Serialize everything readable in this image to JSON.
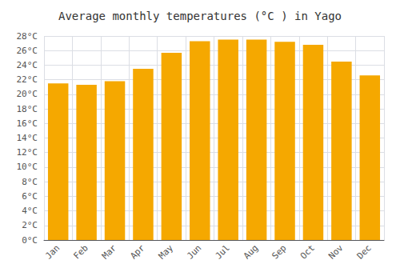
{
  "chart_data": {
    "type": "bar",
    "title": "Average monthly temperatures (°C ) in Yago",
    "categories": [
      "Jan",
      "Feb",
      "Mar",
      "Apr",
      "May",
      "Jun",
      "Jul",
      "Aug",
      "Sep",
      "Oct",
      "Nov",
      "Dec"
    ],
    "values": [
      21.5,
      21.3,
      21.8,
      23.5,
      25.7,
      27.3,
      27.5,
      27.5,
      27.2,
      26.8,
      24.5,
      22.6
    ],
    "color": "#F5A800",
    "ylim": [
      0,
      28
    ],
    "yticks": [
      {
        "value": 0,
        "label": "0°C"
      },
      {
        "value": 2,
        "label": "2°C"
      },
      {
        "value": 4,
        "label": "4°C"
      },
      {
        "value": 6,
        "label": "6°C"
      },
      {
        "value": 8,
        "label": "8°C"
      },
      {
        "value": 10,
        "label": "10°C"
      },
      {
        "value": 12,
        "label": "12°C"
      },
      {
        "value": 14,
        "label": "14°C"
      },
      {
        "value": 16,
        "label": "16°C"
      },
      {
        "value": 18,
        "label": "18°C"
      },
      {
        "value": 20,
        "label": "20°C"
      },
      {
        "value": 22,
        "label": "22°C"
      },
      {
        "value": 24,
        "label": "24°C"
      },
      {
        "value": 26,
        "label": "26°C"
      },
      {
        "value": 28,
        "label": "28°C"
      }
    ],
    "grid": true
  }
}
